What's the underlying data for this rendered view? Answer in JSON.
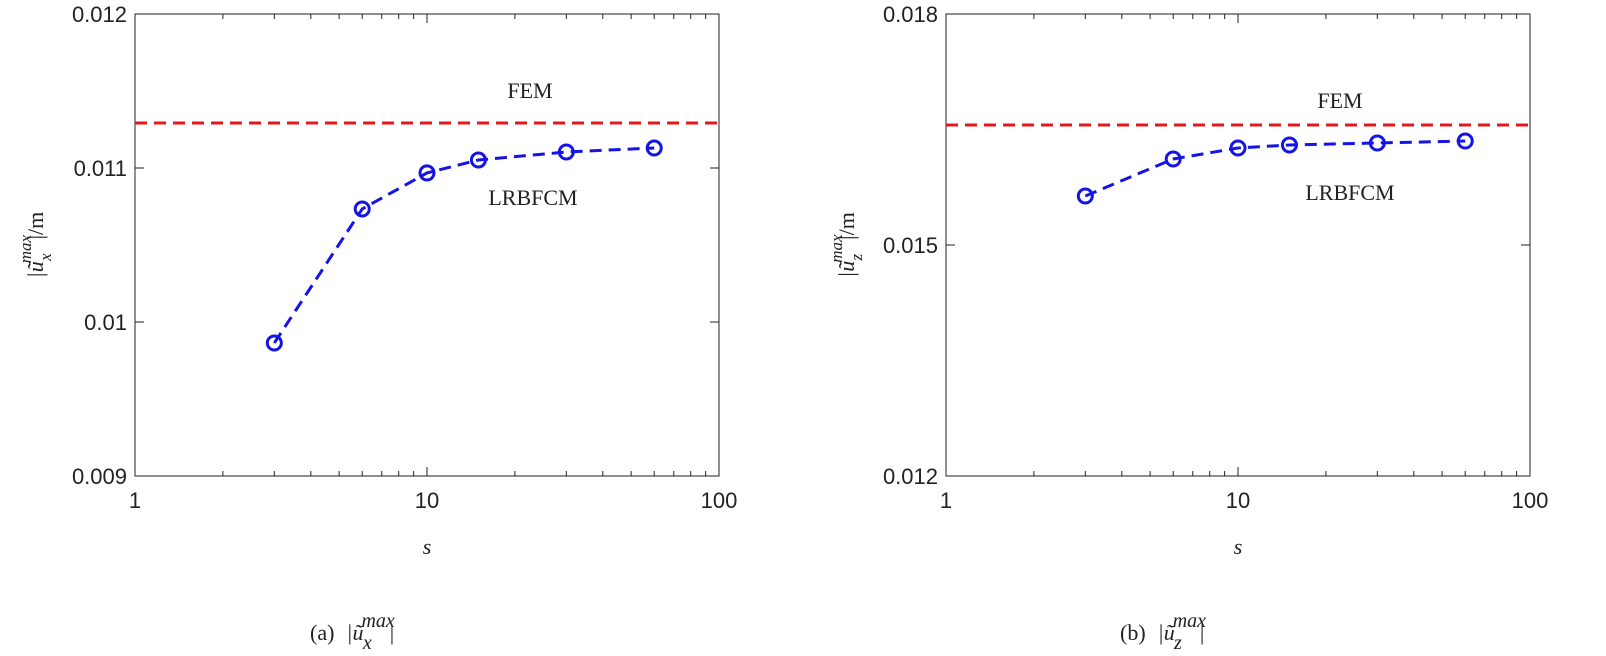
{
  "chart_data": [
    {
      "type": "line",
      "xlabel": "s",
      "ylabel": {
        "base": "|ũ",
        "sub": "x",
        "sup": "max",
        "tail": "|/m"
      },
      "caption": {
        "tag": "(a)",
        "base": "|ũ",
        "sub": "x",
        "sup": "max",
        "tail": "|"
      },
      "x": [
        3,
        6,
        10,
        15,
        30,
        60
      ],
      "series": [
        {
          "name": "LRBFCM",
          "color": "#1414e6",
          "values": [
            0.009864,
            0.010734,
            0.010968,
            0.011052,
            0.011104,
            0.01113
          ]
        }
      ],
      "reference": {
        "name": "FEM",
        "color": "#e01a1a",
        "value": 0.011292
      },
      "xlim": [
        1,
        100
      ],
      "xticks": [
        1,
        10,
        100
      ],
      "xscale": "log",
      "ylim": [
        0.009,
        0.012
      ],
      "yticks": [
        0.009,
        0.01,
        0.011,
        0.012
      ]
    },
    {
      "type": "line",
      "xlabel": "s",
      "ylabel": {
        "base": "|ũ",
        "sub": "z",
        "sup": "max",
        "tail": "|/m"
      },
      "caption": {
        "tag": "(b)",
        "base": "|ũ",
        "sub": "z",
        "sup": "max",
        "tail": "|"
      },
      "x": [
        3,
        6,
        10,
        15,
        30,
        60
      ],
      "series": [
        {
          "name": "LRBFCM",
          "color": "#1414e6",
          "values": [
            0.015636,
            0.016117,
            0.01626,
            0.016299,
            0.016325,
            0.01635
          ]
        }
      ],
      "reference": {
        "name": "FEM",
        "color": "#e01a1a",
        "value": 0.016558
      },
      "xlim": [
        1,
        100
      ],
      "xticks": [
        1,
        10,
        100
      ],
      "xscale": "log",
      "ylim": [
        0.012,
        0.018
      ],
      "yticks": [
        0.012,
        0.015,
        0.018
      ]
    }
  ]
}
